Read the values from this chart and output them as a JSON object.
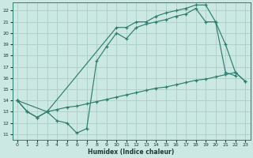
{
  "xlabel": "Humidex (Indice chaleur)",
  "bg_color": "#cce8e2",
  "line_color": "#2e7d6e",
  "grid_color": "#aacfc8",
  "xlim": [
    -0.5,
    23.5
  ],
  "ylim": [
    10.5,
    22.7
  ],
  "xticks": [
    0,
    1,
    2,
    3,
    4,
    5,
    6,
    7,
    8,
    9,
    10,
    11,
    12,
    13,
    14,
    15,
    16,
    17,
    18,
    19,
    20,
    21,
    22,
    23
  ],
  "yticks": [
    11,
    12,
    13,
    14,
    15,
    16,
    17,
    18,
    19,
    20,
    21,
    22
  ],
  "line1_x": [
    0,
    1,
    2,
    3,
    4,
    5,
    6,
    7,
    8,
    9,
    10,
    11,
    12,
    13,
    14,
    15,
    16,
    17,
    18,
    19,
    20,
    21,
    22
  ],
  "line1_y": [
    14,
    13,
    12.5,
    13,
    12.2,
    12.0,
    11.1,
    11.5,
    17.5,
    18.8,
    20.0,
    19.5,
    20.5,
    20.8,
    21.0,
    21.2,
    21.5,
    21.7,
    22.2,
    21.0,
    21.0,
    16.5,
    16.2
  ],
  "line2_x": [
    0,
    1,
    2,
    3,
    4,
    5,
    6,
    7,
    8,
    9,
    10,
    11,
    12,
    13,
    14,
    15,
    16,
    17,
    18,
    19,
    20,
    21,
    22,
    23
  ],
  "line2_y": [
    14,
    13,
    12.5,
    13,
    13.2,
    13.4,
    13.5,
    13.7,
    13.9,
    14.1,
    14.3,
    14.5,
    14.7,
    14.9,
    15.1,
    15.2,
    15.4,
    15.6,
    15.8,
    15.9,
    16.1,
    16.3,
    16.5,
    15.7
  ],
  "line3_x": [
    0,
    3,
    10,
    11,
    12,
    13,
    14,
    15,
    16,
    17,
    18,
    19,
    20,
    21,
    22,
    23
  ],
  "line3_y": [
    14,
    13,
    20.5,
    20.5,
    21.0,
    21.0,
    21.5,
    21.8,
    22.0,
    22.2,
    22.5,
    22.5,
    21.0,
    19.0,
    16.5,
    15.7
  ]
}
